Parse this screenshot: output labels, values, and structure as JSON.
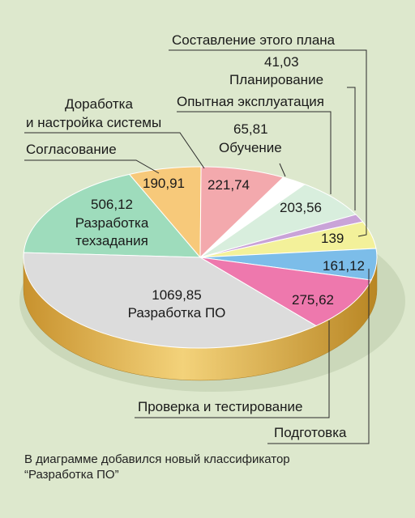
{
  "chart_data": {
    "type": "pie",
    "segments": [
      {
        "name": "Разработка техзадания",
        "value": 506.12,
        "value_label": "506,12",
        "color": "#9edcbc"
      },
      {
        "name": "Согласование",
        "value": 190.91,
        "value_label": "190,91",
        "color": "#f7c97a"
      },
      {
        "name": "Доработка и настройка системы",
        "value": 221.74,
        "value_label": "221,74",
        "color": "#f3a9ad"
      },
      {
        "name": "Обучение",
        "value": 65.81,
        "value_label": "65,81",
        "color": "#ffffff"
      },
      {
        "name": "Опытная эксплуатация",
        "value": 203.56,
        "value_label": "203,56",
        "color": "#d8eedd"
      },
      {
        "name": "Планирование",
        "value": 41.03,
        "value_label": "41,03",
        "color": "#c9a3d8"
      },
      {
        "name": "Составление этого плана",
        "value": 139,
        "value_label": "139",
        "color": "#f3f19a"
      },
      {
        "name": "Подготовка",
        "value": 161.12,
        "value_label": "161,12",
        "color": "#7cbde9"
      },
      {
        "name": "Проверка и тестирование",
        "value": 275.62,
        "value_label": "275,62",
        "color": "#ee78ad"
      },
      {
        "name": "Разработка ПО",
        "value": 1069.85,
        "value_label": "1069,85",
        "color": "#dcdcdc"
      }
    ],
    "labels": {
      "составление": "Составление этого плана",
      "планирование_value": "41,03",
      "планирование": "Планирование",
      "опытная": "Опытная эксплуатация",
      "доработка_line1": "Доработка",
      "доработка_line2": "и настройка системы",
      "обучение_value": "65,81",
      "обучение": "Обучение",
      "согласование": "Согласование",
      "техзадание_line1": "Разработка",
      "техзадание_line2": "техзадания",
      "по_name": "Разработка ПО",
      "проверка": "Проверка и тестирование",
      "подготовка": "Подготовка"
    },
    "side_color": "#d6a640"
  },
  "note": {
    "line1": "В диаграмме добавился новый классификатор",
    "line2": "“Разработка ПО”"
  }
}
